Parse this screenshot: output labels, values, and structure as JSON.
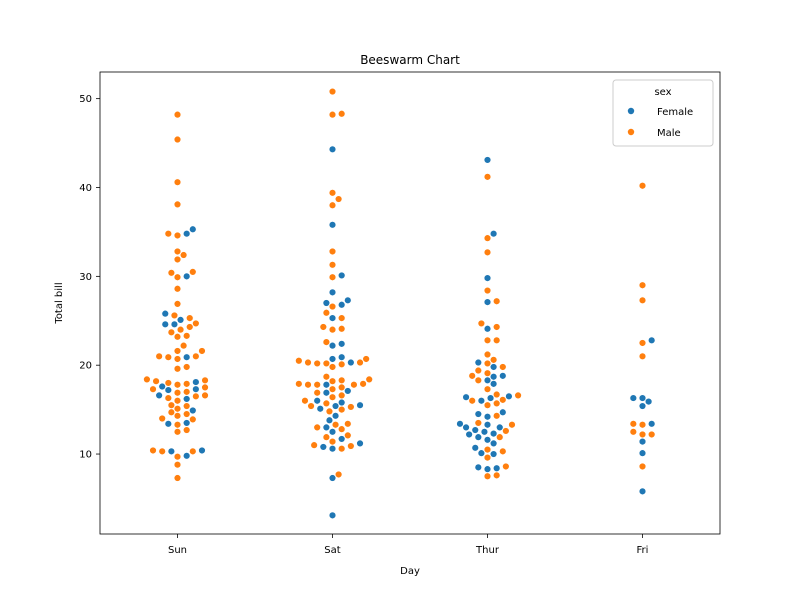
{
  "chart_data": {
    "type": "scatter",
    "subtype": "beeswarm",
    "title": "Beeswarm Chart",
    "xlabel": "Day",
    "ylabel": "Total bill",
    "categories": [
      "Sun",
      "Sat",
      "Thur",
      "Fri"
    ],
    "ylim": [
      1.0,
      53.0
    ],
    "yticks": [
      10,
      20,
      30,
      40,
      50
    ],
    "grid": false,
    "legend": {
      "title": "sex",
      "placement": "top-right",
      "entries": [
        "Female",
        "Male"
      ]
    },
    "colors": {
      "Female": "#1f77b4",
      "Male": "#ff7f0e"
    },
    "series": [
      {
        "name": "Female",
        "points": {
          "Sun": [
            35.3,
            34.8,
            30.0,
            25.8,
            25.1,
            24.6,
            24.6,
            20.9,
            18.1,
            17.6,
            17.3,
            17.2,
            16.6,
            16.2,
            14.9,
            13.5,
            13.4,
            10.4,
            10.3,
            9.8
          ],
          "Sat": [
            44.3,
            35.8,
            30.1,
            28.2,
            27.3,
            27.0,
            26.8,
            25.3,
            22.4,
            22.2,
            20.9,
            20.7,
            20.3,
            17.8,
            17.1,
            16.9,
            16.0,
            15.8,
            15.5,
            15.4,
            15.1,
            14.3,
            13.8,
            13.0,
            12.5,
            11.7,
            11.2,
            10.8,
            10.6,
            7.3,
            3.1
          ],
          "Thur": [
            43.1,
            34.8,
            29.8,
            27.1,
            24.1,
            20.3,
            19.8,
            18.8,
            18.7,
            18.3,
            17.9,
            16.5,
            16.4,
            16.3,
            16.0,
            14.7,
            14.5,
            14.2,
            13.4,
            13.3,
            13.0,
            13.0,
            12.7,
            12.5,
            12.3,
            12.2,
            11.9,
            11.6,
            11.2,
            10.7,
            10.1,
            10.0,
            8.5,
            8.4,
            8.3
          ],
          "Fri": [
            22.8,
            16.3,
            16.3,
            15.9,
            15.4,
            13.4,
            11.4,
            10.1,
            5.8
          ]
        }
      },
      {
        "name": "Male",
        "points": {
          "Sun": [
            48.2,
            45.4,
            40.6,
            38.1,
            34.8,
            34.6,
            32.8,
            32.4,
            31.9,
            30.5,
            30.4,
            29.9,
            28.6,
            26.9,
            25.6,
            25.3,
            24.7,
            24.3,
            24.0,
            23.7,
            23.3,
            23.2,
            22.2,
            21.6,
            21.6,
            21.0,
            21.0,
            20.9,
            20.7,
            19.8,
            19.6,
            18.4,
            18.3,
            18.2,
            18.0,
            17.9,
            17.8,
            17.5,
            17.3,
            17.0,
            16.9,
            16.6,
            16.5,
            16.3,
            16.0,
            15.5,
            15.4,
            15.1,
            14.7,
            14.5,
            14.3,
            14.0,
            13.9,
            13.3,
            12.7,
            12.5,
            10.4,
            10.3,
            10.3,
            9.7,
            8.8,
            7.3
          ],
          "Sat": [
            50.8,
            48.3,
            48.2,
            39.4,
            38.7,
            38.0,
            32.8,
            31.3,
            29.9,
            26.6,
            25.9,
            25.3,
            24.3,
            24.1,
            24.0,
            22.6,
            20.7,
            20.5,
            20.3,
            20.3,
            20.2,
            20.2,
            20.1,
            19.8,
            18.7,
            18.4,
            18.3,
            18.2,
            17.9,
            17.9,
            17.8,
            17.8,
            17.8,
            17.5,
            17.3,
            16.9,
            16.6,
            16.4,
            16.0,
            15.7,
            15.4,
            15.3,
            15.0,
            14.8,
            13.4,
            13.3,
            13.0,
            12.8,
            12.1,
            11.9,
            11.4,
            11.0,
            10.9,
            10.6,
            7.7
          ],
          "Thur": [
            41.2,
            34.3,
            32.7,
            28.4,
            27.2,
            24.7,
            24.3,
            22.8,
            22.8,
            21.2,
            20.6,
            20.2,
            19.8,
            19.4,
            19.1,
            18.8,
            18.3,
            17.3,
            16.7,
            16.6,
            16.1,
            16.0,
            15.7,
            15.5,
            14.3,
            13.5,
            13.3,
            12.6,
            11.9,
            10.5,
            10.3,
            9.6,
            8.6,
            7.6,
            7.5
          ],
          "Fri": [
            40.2,
            29.0,
            27.3,
            22.5,
            21.0,
            13.4,
            13.3,
            12.5,
            12.2,
            12.2,
            8.6
          ]
        }
      }
    ]
  }
}
